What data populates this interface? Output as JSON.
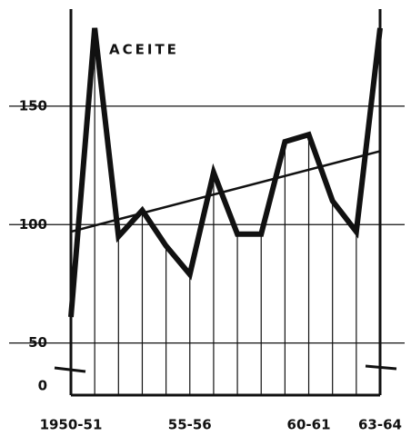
{
  "chart_data": {
    "type": "line",
    "annotation": "ACEITE",
    "categories": [
      "1950-51",
      null,
      null,
      null,
      null,
      "55-56",
      null,
      null,
      null,
      null,
      "60-61",
      null,
      null,
      "63-64"
    ],
    "series": [
      {
        "color": "#111111",
        "values": [
          61,
          183,
          95,
          106,
          91,
          79,
          122,
          96,
          96,
          135,
          138,
          110,
          97,
          183
        ]
      }
    ],
    "trend": {
      "color": "#111111",
      "values": [
        97,
        131
      ]
    },
    "ylim": [
      28,
      191
    ],
    "yticks": [
      0,
      50,
      100,
      150
    ],
    "axis_break": true,
    "grid": true
  }
}
